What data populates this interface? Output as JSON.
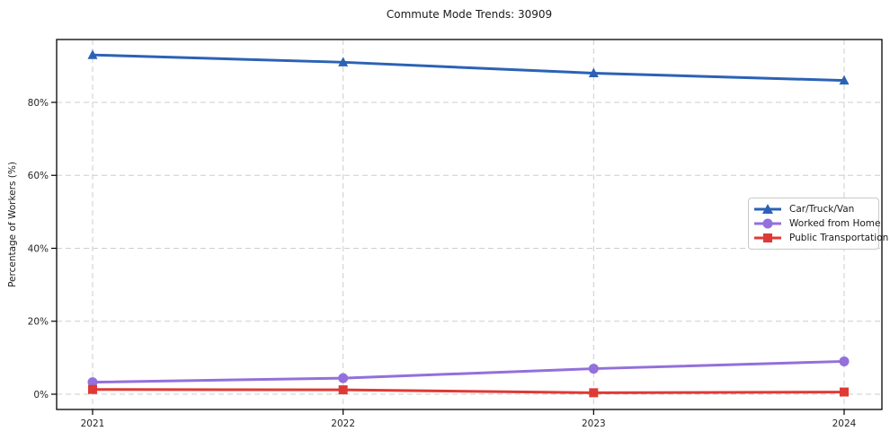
{
  "chart_data": {
    "type": "line",
    "title": "Commute Mode Trends: 30909",
    "xlabel": "",
    "ylabel": "Percentage of Workers (%)",
    "categories": [
      "2021",
      "2022",
      "2023",
      "2024"
    ],
    "series": [
      {
        "name": "Car/Truck/Van",
        "marker": "triangle",
        "color": "#2b62b5",
        "values": [
          93,
          91,
          88,
          86
        ]
      },
      {
        "name": "Worked from Home",
        "marker": "circle",
        "color": "#9370db",
        "values": [
          3.3,
          4.4,
          7.0,
          9.0
        ]
      },
      {
        "name": "Public Transportation",
        "marker": "square",
        "color": "#de3a35",
        "values": [
          1.3,
          1.2,
          0.4,
          0.6
        ]
      }
    ],
    "ytick_values": [
      0,
      20,
      40,
      60,
      80
    ],
    "ytick_labels": [
      "0%",
      "20%",
      "40%",
      "60%",
      "80%"
    ],
    "ylim": [
      -4.2,
      97.2
    ],
    "grid": true,
    "grid_style": "dashed",
    "legend_position": "center-right"
  }
}
